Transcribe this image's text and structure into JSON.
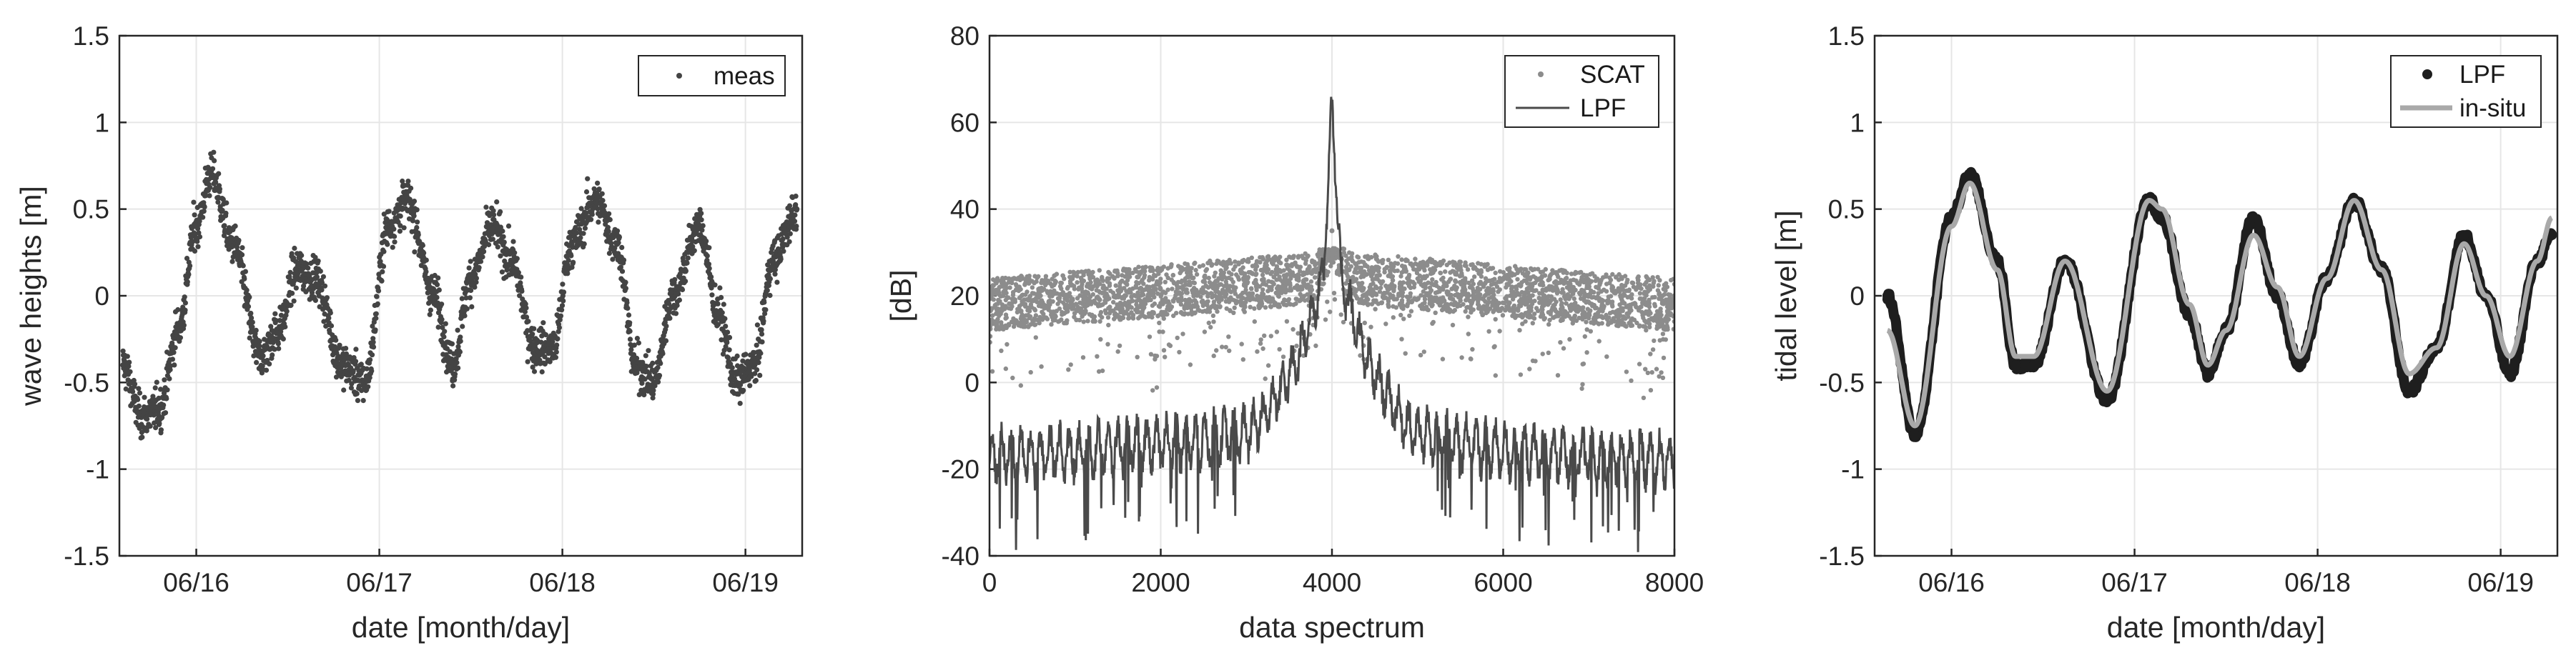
{
  "colors": {
    "meas": "#444444",
    "scat": "#8c8c8c",
    "lpf_mid": "#4a4a4a",
    "lpf_right": "#1e1e1e",
    "insitu": "#a9a9a9",
    "grid": "#e6e6e6",
    "axis": "#262626"
  },
  "chart_data": [
    {
      "type": "scatter",
      "xlabel": "date [month/day]",
      "ylabel": "wave heights [m]",
      "xticks": [
        {
          "value": 1.0,
          "label": "06/16"
        },
        {
          "value": 2.0,
          "label": "06/17"
        },
        {
          "value": 3.0,
          "label": "06/18"
        },
        {
          "value": 4.0,
          "label": "06/19"
        }
      ],
      "xlim": [
        0.58,
        4.31
      ],
      "ylim": [
        -1.5,
        1.5
      ],
      "yticks": [
        "1.5",
        "1",
        "0.5",
        "0",
        "-0.5",
        "-1",
        "-1.5"
      ],
      "grid": true,
      "legend": {
        "position": "top-right",
        "entries": [
          "meas"
        ]
      },
      "series": [
        {
          "name": "meas",
          "note": "noisy tidal wave height samples",
          "x": [
            0.6,
            0.7,
            0.8,
            0.9,
            1.0,
            1.08,
            1.2,
            1.35,
            1.45,
            1.55,
            1.65,
            1.8,
            1.92,
            2.05,
            2.15,
            2.3,
            2.4,
            2.5,
            2.62,
            2.72,
            2.85,
            2.95,
            3.05,
            3.18,
            3.3,
            3.4,
            3.5,
            3.6,
            3.75,
            3.85,
            3.95,
            4.05,
            4.15,
            4.28
          ],
          "values": [
            -0.4,
            -0.7,
            -0.65,
            -0.2,
            0.4,
            0.7,
            0.3,
            -0.35,
            -0.2,
            0.15,
            0.1,
            -0.4,
            -0.5,
            0.4,
            0.55,
            0.0,
            -0.4,
            0.1,
            0.4,
            0.2,
            -0.3,
            -0.3,
            0.3,
            0.55,
            0.3,
            -0.4,
            -0.5,
            0.0,
            0.4,
            -0.1,
            -0.5,
            -0.4,
            0.2,
            0.5
          ]
        }
      ]
    },
    {
      "type": "line",
      "xlabel": "data spectrum",
      "ylabel": "[dB]",
      "xlim": [
        0,
        8000
      ],
      "ylim": [
        -40,
        80
      ],
      "xticks": [
        "0",
        "2000",
        "4000",
        "6000",
        "8000"
      ],
      "yticks": [
        "80",
        "60",
        "40",
        "20",
        "0",
        "-20",
        "-40"
      ],
      "grid": true,
      "legend": {
        "position": "top-right",
        "entries": [
          "SCAT",
          "LPF"
        ]
      },
      "series": [
        {
          "name": "SCAT",
          "style": "dots",
          "note": "noise floor centered near 20 dB, spread 0–30 dB, peak at 4000",
          "x": [
            0,
            3800,
            4000,
            4200,
            8000
          ],
          "values": [
            20,
            26,
            35,
            26,
            20
          ]
        },
        {
          "name": "LPF",
          "style": "line",
          "note": "low-pass spectrum: floor about -20 dB, triangular rise to 65 dB at 4000",
          "x": [
            0,
            1000,
            2000,
            3000,
            3200,
            3600,
            3900,
            4000,
            4100,
            4400,
            4800,
            5000,
            6000,
            7000,
            8000
          ],
          "values": [
            -17,
            -16,
            -14,
            -12,
            -8,
            5,
            25,
            65,
            25,
            5,
            -8,
            -12,
            -16,
            -17,
            -18
          ]
        }
      ]
    },
    {
      "type": "line",
      "xlabel": "date [month/day]",
      "ylabel": "tidal level [m]",
      "xticks": [
        {
          "value": 1.0,
          "label": "06/16"
        },
        {
          "value": 2.0,
          "label": "06/17"
        },
        {
          "value": 3.0,
          "label": "06/18"
        },
        {
          "value": 4.0,
          "label": "06/19"
        }
      ],
      "xlim": [
        0.58,
        4.31
      ],
      "ylim": [
        -1.5,
        1.5
      ],
      "yticks": [
        "1.5",
        "1",
        "0.5",
        "0",
        "-0.5",
        "-1",
        "-1.5"
      ],
      "grid": true,
      "legend": {
        "position": "top-right",
        "entries": [
          "LPF",
          "in-situ"
        ]
      },
      "series": [
        {
          "name": "LPF",
          "style": "thick-dots",
          "x": [
            0.65,
            0.8,
            1.0,
            1.1,
            1.25,
            1.35,
            1.45,
            1.62,
            1.85,
            2.08,
            2.15,
            2.3,
            2.4,
            2.5,
            2.65,
            2.78,
            2.9,
            3.05,
            3.2,
            3.35,
            3.5,
            3.65,
            3.8,
            3.92,
            4.05,
            4.2,
            4.28
          ],
          "values": [
            0.0,
            -0.8,
            0.45,
            0.7,
            0.2,
            -0.4,
            -0.4,
            0.2,
            -0.6,
            0.55,
            0.45,
            -0.1,
            -0.45,
            -0.2,
            0.45,
            0.0,
            -0.4,
            0.1,
            0.55,
            0.15,
            -0.55,
            -0.3,
            0.35,
            0.0,
            -0.45,
            0.2,
            0.35
          ]
        },
        {
          "name": "in-situ",
          "style": "line",
          "x": [
            0.65,
            0.8,
            1.0,
            1.1,
            1.25,
            1.35,
            1.45,
            1.62,
            1.85,
            2.08,
            2.15,
            2.3,
            2.4,
            2.5,
            2.65,
            2.78,
            2.9,
            3.05,
            3.2,
            3.35,
            3.5,
            3.65,
            3.8,
            3.92,
            4.05,
            4.2,
            4.28
          ],
          "values": [
            -0.2,
            -0.75,
            0.4,
            0.65,
            0.15,
            -0.35,
            -0.35,
            0.2,
            -0.55,
            0.55,
            0.5,
            -0.05,
            -0.4,
            -0.2,
            0.35,
            0.05,
            -0.35,
            0.1,
            0.55,
            0.15,
            -0.45,
            -0.3,
            0.3,
            0.0,
            -0.35,
            0.2,
            0.45
          ]
        }
      ]
    }
  ]
}
